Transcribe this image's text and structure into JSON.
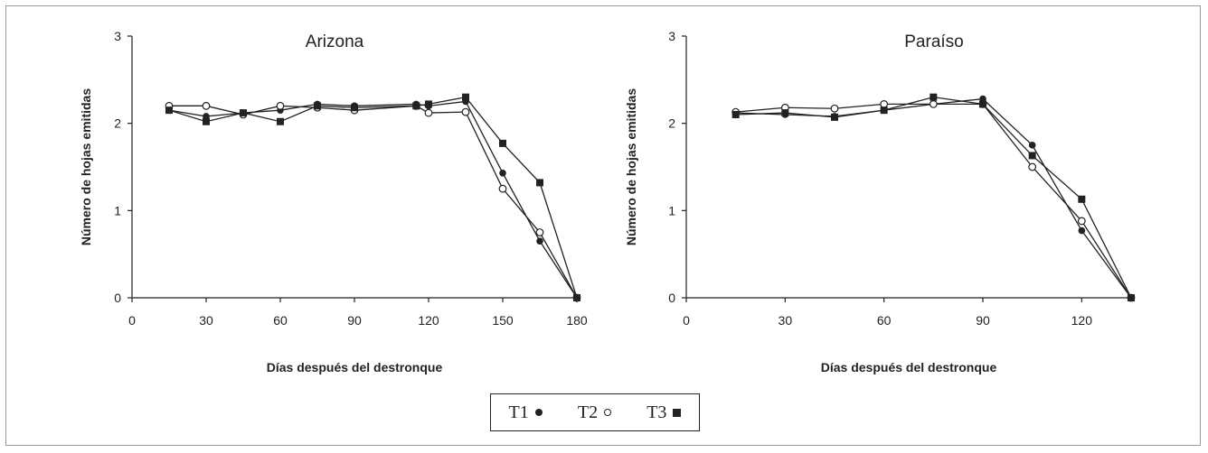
{
  "chart_data": [
    {
      "type": "line",
      "title": "Arizona",
      "xlabel": "Días después del destronque",
      "ylabel": "Número de hojas emitidas",
      "xlim": [
        0,
        180
      ],
      "ylim": [
        0,
        3
      ],
      "xticks": [
        "0",
        "30",
        "60",
        "90",
        "120",
        "150",
        "180"
      ],
      "yticks": [
        "0",
        "1",
        "2",
        "3"
      ],
      "grid": false,
      "series": [
        {
          "name": "T1",
          "marker": "filled-circle",
          "x": [
            15,
            30,
            45,
            60,
            75,
            90,
            115,
            120,
            135,
            150,
            165,
            180
          ],
          "y": [
            2.15,
            2.08,
            2.12,
            2.15,
            2.22,
            2.2,
            2.22,
            2.2,
            2.25,
            1.43,
            0.65,
            0.0
          ]
        },
        {
          "name": "T2",
          "marker": "open-circle",
          "x": [
            15,
            30,
            45,
            60,
            75,
            90,
            115,
            120,
            135,
            150,
            165,
            180
          ],
          "y": [
            2.2,
            2.2,
            2.1,
            2.2,
            2.18,
            2.15,
            2.2,
            2.12,
            2.13,
            1.25,
            0.75,
            0.0
          ]
        },
        {
          "name": "T3",
          "marker": "filled-square",
          "x": [
            15,
            30,
            45,
            60,
            75,
            90,
            115,
            120,
            135,
            150,
            165,
            180
          ],
          "y": [
            2.15,
            2.02,
            2.12,
            2.02,
            2.2,
            2.18,
            2.2,
            2.22,
            2.3,
            1.77,
            1.32,
            0.0
          ]
        }
      ]
    },
    {
      "type": "line",
      "title": "Paraíso",
      "xlabel": "Días después del destronque",
      "ylabel": "Número de hojas emitidas",
      "xlim": [
        0,
        135
      ],
      "ylim": [
        0,
        3
      ],
      "xticks": [
        "0",
        "30",
        "60",
        "90",
        "120"
      ],
      "yticks": [
        "0",
        "1",
        "2",
        "3"
      ],
      "grid": false,
      "series": [
        {
          "name": "T1",
          "marker": "filled-circle",
          "x": [
            15,
            30,
            45,
            60,
            75,
            90,
            105,
            120,
            135
          ],
          "y": [
            2.12,
            2.1,
            2.08,
            2.15,
            2.22,
            2.28,
            1.75,
            0.77,
            0.0
          ]
        },
        {
          "name": "T2",
          "marker": "open-circle",
          "x": [
            15,
            30,
            45,
            60,
            75,
            90,
            105,
            120,
            135
          ],
          "y": [
            2.13,
            2.18,
            2.17,
            2.22,
            2.22,
            2.22,
            1.5,
            0.88,
            0.0
          ]
        },
        {
          "name": "T3",
          "marker": "filled-square",
          "x": [
            15,
            30,
            45,
            60,
            75,
            90,
            105,
            120,
            135
          ],
          "y": [
            2.1,
            2.12,
            2.07,
            2.15,
            2.3,
            2.22,
            1.63,
            1.13,
            0.0
          ]
        }
      ]
    }
  ],
  "legend": {
    "placement": "bottom-center",
    "items": [
      {
        "label": "T1",
        "symbol": "filled-circle"
      },
      {
        "label": "T2",
        "symbol": "open-circle"
      },
      {
        "label": "T3",
        "symbol": "filled-square"
      }
    ]
  }
}
